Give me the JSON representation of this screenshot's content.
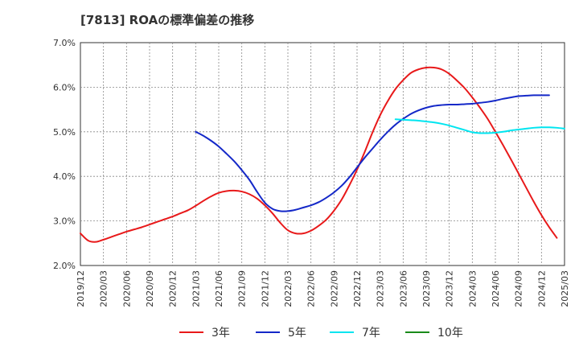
{
  "chart_data": {
    "type": "line",
    "title": "[7813]  ROAの標準偏差の推移",
    "xlabel": "",
    "ylabel": "",
    "y_ticks": [
      "2.0%",
      "3.0%",
      "4.0%",
      "5.0%",
      "6.0%",
      "7.0%"
    ],
    "ylim": [
      2.0,
      7.0
    ],
    "x_ticks": [
      "2019/12",
      "2020/03",
      "2020/06",
      "2020/09",
      "2020/12",
      "2021/03",
      "2021/06",
      "2021/09",
      "2021/12",
      "2022/03",
      "2022/06",
      "2022/09",
      "2022/12",
      "2023/03",
      "2023/06",
      "2023/09",
      "2023/12",
      "2024/03",
      "2024/06",
      "2024/09",
      "2024/12",
      "2025/03"
    ],
    "grid": true,
    "legend_position": "bottom",
    "series": [
      {
        "name": "3年",
        "color": "#e8191a",
        "start_index": 0,
        "values": [
          2.72,
          2.56,
          2.53,
          2.58,
          2.64,
          2.7,
          2.76,
          2.81,
          2.86,
          2.92,
          2.98,
          3.04,
          3.1,
          3.17,
          3.24,
          3.34,
          3.45,
          3.55,
          3.63,
          3.67,
          3.68,
          3.66,
          3.6,
          3.5,
          3.35,
          3.17,
          2.96,
          2.79,
          2.72,
          2.72,
          2.78,
          2.89,
          3.03,
          3.23,
          3.48,
          3.8,
          4.15,
          4.55,
          4.98,
          5.37,
          5.69,
          5.96,
          6.16,
          6.32,
          6.4,
          6.44,
          6.44,
          6.4,
          6.3,
          6.15,
          5.98,
          5.77,
          5.54,
          5.29,
          5.0,
          4.7,
          4.39,
          4.07,
          3.75,
          3.43,
          3.13,
          2.86,
          2.62
        ]
      },
      {
        "name": "5年",
        "color": "#1428c8",
        "start_index": 15,
        "values": [
          5.0,
          4.91,
          4.8,
          4.67,
          4.51,
          4.34,
          4.14,
          3.92,
          3.65,
          3.41,
          3.27,
          3.22,
          3.22,
          3.25,
          3.3,
          3.35,
          3.42,
          3.52,
          3.64,
          3.79,
          3.98,
          4.2,
          4.42,
          4.62,
          4.82,
          5.0,
          5.16,
          5.29,
          5.4,
          5.48,
          5.54,
          5.58,
          5.6,
          5.61,
          5.61,
          5.62,
          5.63,
          5.65,
          5.67,
          5.7,
          5.74,
          5.77,
          5.8,
          5.81,
          5.82,
          5.82,
          5.82
        ]
      },
      {
        "name": "7年",
        "color": "#00e5f0",
        "start_index": 41,
        "values": [
          5.28,
          5.27,
          5.26,
          5.25,
          5.23,
          5.21,
          5.18,
          5.14,
          5.09,
          5.04,
          4.99,
          4.97,
          4.97,
          4.98,
          5.0,
          5.03,
          5.05,
          5.07,
          5.09,
          5.1,
          5.1,
          5.09,
          5.07
        ]
      },
      {
        "name": "10年",
        "color": "#1a8a1a",
        "start_index": 0,
        "values": []
      }
    ]
  }
}
